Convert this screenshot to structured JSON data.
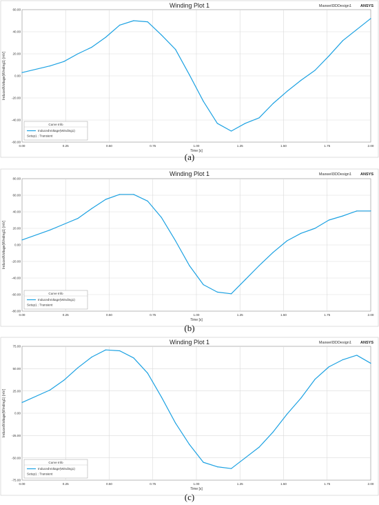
{
  "chart_data": [
    {
      "type": "line",
      "title": "Winding Plot 1",
      "project_label": "Maxwell3DDesign1",
      "brand_label": "ANSYS",
      "xlabel": "Time [s]",
      "ylabel": "InducedVoltage(Winding1) [mV]",
      "xlim": [
        0,
        2
      ],
      "ylim": [
        -60,
        60
      ],
      "x_ticks": [
        "0.00",
        "0.25",
        "0.50",
        "0.75",
        "1.00",
        "1.25",
        "1.50",
        "1.75",
        "2.00"
      ],
      "y_ticks": [
        "60.00",
        "40.00",
        "20.00",
        "0.00",
        "-20.00",
        "-40.00",
        "-60.00"
      ],
      "grid": true,
      "legend_position": "bottom-left",
      "legend_title": "Curve Info",
      "series": [
        {
          "name": "InducedVoltage(Winding1)",
          "setup": "Setup1 : Transient",
          "color": "#1ba1e2",
          "x": [
            0,
            0.16,
            0.24,
            0.32,
            0.4,
            0.48,
            0.56,
            0.64,
            0.72,
            0.8,
            0.88,
            0.96,
            1.04,
            1.12,
            1.2,
            1.28,
            1.36,
            1.44,
            1.52,
            1.6,
            1.68,
            1.76,
            1.84,
            1.92,
            2.0
          ],
          "y": [
            3,
            9,
            13,
            20,
            26,
            35,
            46,
            50,
            49,
            37,
            24,
            1,
            -23,
            -43,
            -50,
            -43,
            -38,
            -25,
            -14,
            -4,
            5,
            18,
            32,
            42,
            52
          ]
        }
      ],
      "caption": "(a)"
    },
    {
      "type": "line",
      "title": "Winding Plot 1",
      "project_label": "Maxwell3DDesign1",
      "brand_label": "ANSYS",
      "xlabel": "Time [s]",
      "ylabel": "InducedVoltage(Winding1) [mV]",
      "xlim": [
        0,
        2
      ],
      "ylim": [
        -80,
        80
      ],
      "x_ticks": [
        "0.00",
        "0.25",
        "0.50",
        "0.75",
        "1.00",
        "1.25",
        "1.50",
        "1.75",
        "2.00"
      ],
      "y_ticks": [
        "80.00",
        "60.00",
        "40.00",
        "20.00",
        "0.00",
        "-20.00",
        "-40.00",
        "-60.00",
        "-80.00"
      ],
      "grid": true,
      "legend_position": "bottom-left",
      "legend_title": "Curve Info",
      "series": [
        {
          "name": "InducedVoltage(Winding1)",
          "setup": "Setup1 : Transient",
          "color": "#1ba1e2",
          "x": [
            0,
            0.16,
            0.24,
            0.32,
            0.4,
            0.48,
            0.56,
            0.64,
            0.72,
            0.8,
            0.88,
            0.96,
            1.04,
            1.12,
            1.2,
            1.28,
            1.36,
            1.44,
            1.52,
            1.6,
            1.68,
            1.76,
            1.84,
            1.92,
            2.0
          ],
          "y": [
            6,
            18,
            25,
            32,
            44,
            55,
            61,
            61,
            53,
            33,
            5,
            -25,
            -48,
            -57,
            -59,
            -42,
            -25,
            -9,
            5,
            14,
            20,
            30,
            35,
            41,
            41
          ]
        }
      ],
      "caption": "(b)"
    },
    {
      "type": "line",
      "title": "Winding Plot 1",
      "project_label": "Maxwell3DDesign1",
      "brand_label": "ANSYS",
      "xlabel": "Time [s]",
      "ylabel": "InducedVoltage(Winding1) [mV]",
      "xlim": [
        0,
        2
      ],
      "ylim": [
        -75,
        75
      ],
      "x_ticks": [
        "0.00",
        "0.25",
        "0.50",
        "0.75",
        "1.00",
        "1.25",
        "1.50",
        "1.75",
        "2.00"
      ],
      "y_ticks": [
        "75.00",
        "50.00",
        "25.00",
        "0.00",
        "-25.00",
        "-50.00",
        "-75.00"
      ],
      "grid": true,
      "legend_position": "bottom-left",
      "legend_title": "Curve Info",
      "series": [
        {
          "name": "InducedVoltage(Winding1)",
          "setup": "Setup1 : Transient",
          "color": "#1ba1e2",
          "x": [
            0,
            0.16,
            0.24,
            0.32,
            0.4,
            0.48,
            0.56,
            0.64,
            0.72,
            0.8,
            0.88,
            0.96,
            1.04,
            1.12,
            1.2,
            1.28,
            1.36,
            1.44,
            1.52,
            1.6,
            1.68,
            1.76,
            1.84,
            1.92,
            2.0
          ],
          "y": [
            12,
            26,
            37,
            51,
            63,
            71,
            70,
            62,
            45,
            18,
            -11,
            -35,
            -55,
            -60,
            -62,
            -50,
            -38,
            -21,
            -1,
            17,
            38,
            52,
            60,
            65,
            56
          ]
        }
      ],
      "caption": "(c)"
    }
  ]
}
